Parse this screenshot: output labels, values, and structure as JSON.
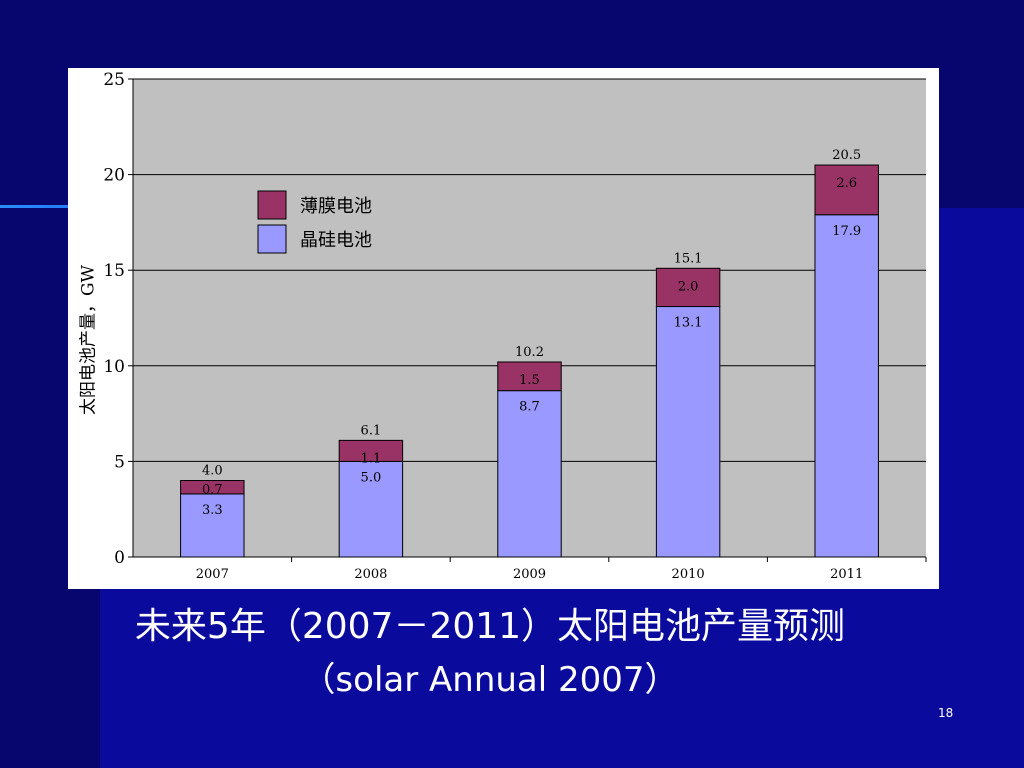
{
  "slide": {
    "caption_line1": "未来5年（2007－2011）太阳电池产量预测",
    "caption_line2": "（solar Annual 2007）",
    "page_number": "18"
  },
  "chart_data": {
    "type": "bar",
    "stacked": true,
    "categories": [
      "2007",
      "2008",
      "2009",
      "2010",
      "2011"
    ],
    "series": [
      {
        "name": "晶硅电池",
        "values": [
          3.3,
          5.0,
          8.7,
          13.1,
          17.9
        ],
        "labels": [
          "3.3",
          "5.0",
          "8.7",
          "13.1",
          "17.9"
        ],
        "color": "#9999ff"
      },
      {
        "name": "薄膜电池",
        "values": [
          0.7,
          1.1,
          1.5,
          2.0,
          2.6
        ],
        "labels": [
          "0.7",
          "1.1",
          "1.5",
          "2.0",
          "2.6"
        ],
        "color": "#993366"
      }
    ],
    "totals": [
      "4.0",
      "6.1",
      "10.2",
      "15.1",
      "20.5"
    ],
    "ylabel": "太阳电池产量，GW",
    "xlabel": "",
    "ylim": [
      0,
      25
    ],
    "yticks": [
      "0",
      "5",
      "10",
      "15",
      "20",
      "25"
    ],
    "grid": true,
    "legend": "top-left",
    "plot_background": "#c0c0c0"
  }
}
